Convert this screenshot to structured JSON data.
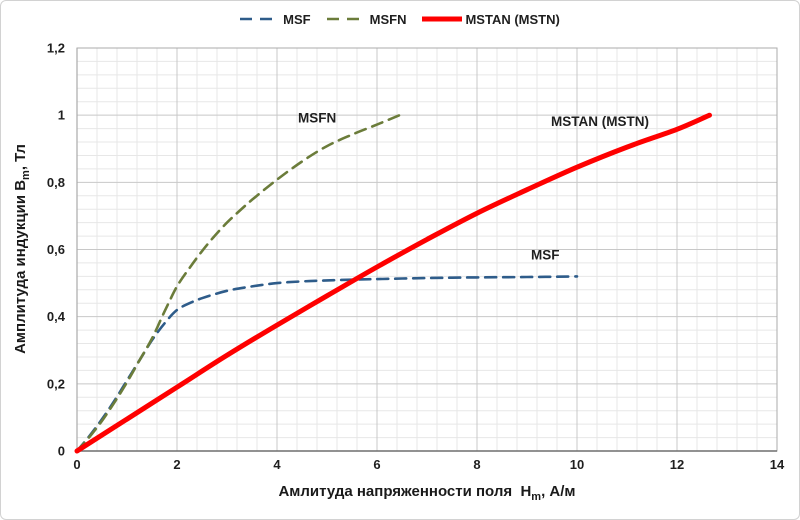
{
  "chart_data": {
    "type": "line",
    "title": "",
    "xlabel_prefix": "Амлитуда напряженности поля  H",
    "xlabel_sub": "m",
    "xlabel_suffix": ", А/м",
    "ylabel_prefix": "Амплитуда индукции B",
    "ylabel_sub": "m",
    "ylabel_suffix": ", Тл",
    "xlim": [
      0,
      14
    ],
    "ylim": [
      0,
      1.2
    ],
    "x_major_step": 2,
    "x_minor_step": 0.4,
    "y_major_step": 0.2,
    "y_minor_step": 0.04,
    "grid": true,
    "legend_position": "top-center",
    "x_ticks": [
      "0",
      "2",
      "4",
      "6",
      "8",
      "10",
      "12",
      "14"
    ],
    "y_ticks": [
      "0",
      "0,2",
      "0,4",
      "0,6",
      "0,8",
      "1",
      "1,2"
    ],
    "series": [
      {
        "name": "MSF",
        "color": "#2e5c8a",
        "style": "dashed",
        "line_width": 2.6,
        "x": [
          0,
          0.25,
          0.5,
          0.75,
          1,
          1.25,
          1.5,
          1.75,
          2,
          2.25,
          2.5,
          3,
          3.5,
          4,
          4.5,
          5,
          6,
          7,
          8,
          9,
          10
        ],
        "y": [
          0,
          0.045,
          0.095,
          0.15,
          0.21,
          0.27,
          0.33,
          0.38,
          0.42,
          0.44,
          0.455,
          0.477,
          0.49,
          0.5,
          0.505,
          0.508,
          0.512,
          0.515,
          0.517,
          0.518,
          0.52
        ]
      },
      {
        "name": "MSFN",
        "color": "#6b7c3a",
        "style": "dashed",
        "line_width": 2.6,
        "x": [
          0,
          0.25,
          0.5,
          0.75,
          1,
          1.25,
          1.5,
          1.75,
          2,
          2.25,
          2.5,
          2.75,
          3,
          3.25,
          3.5,
          4,
          4.5,
          5,
          5.5,
          6,
          6.45
        ],
        "y": [
          0,
          0.042,
          0.09,
          0.145,
          0.205,
          0.27,
          0.335,
          0.415,
          0.49,
          0.545,
          0.595,
          0.64,
          0.68,
          0.715,
          0.748,
          0.808,
          0.862,
          0.908,
          0.942,
          0.972,
          1.0
        ]
      },
      {
        "name": "MSTAN (MSTN)",
        "color": "#fe0000",
        "style": "solid",
        "line_width": 5,
        "x": [
          0,
          1,
          2,
          3,
          4,
          5,
          6,
          7,
          8,
          9,
          10,
          11,
          12,
          12.65
        ],
        "y": [
          0,
          0.095,
          0.19,
          0.285,
          0.375,
          0.462,
          0.548,
          0.63,
          0.708,
          0.778,
          0.845,
          0.905,
          0.958,
          1.0
        ]
      }
    ],
    "annotations": [
      {
        "text": "MSFN",
        "x": 4.42,
        "y": 0.99
      },
      {
        "text": "MSTAN (MSTN)",
        "x": 9.48,
        "y": 0.98
      },
      {
        "text": "MSF",
        "x": 9.08,
        "y": 0.582
      }
    ],
    "colors": {
      "grid_minor": "#e7e7e7",
      "grid_major": "#c8c8c8",
      "plot_border": "#ababab",
      "axis_line": "#6e6e6e",
      "text": "#1f1f1f"
    }
  }
}
